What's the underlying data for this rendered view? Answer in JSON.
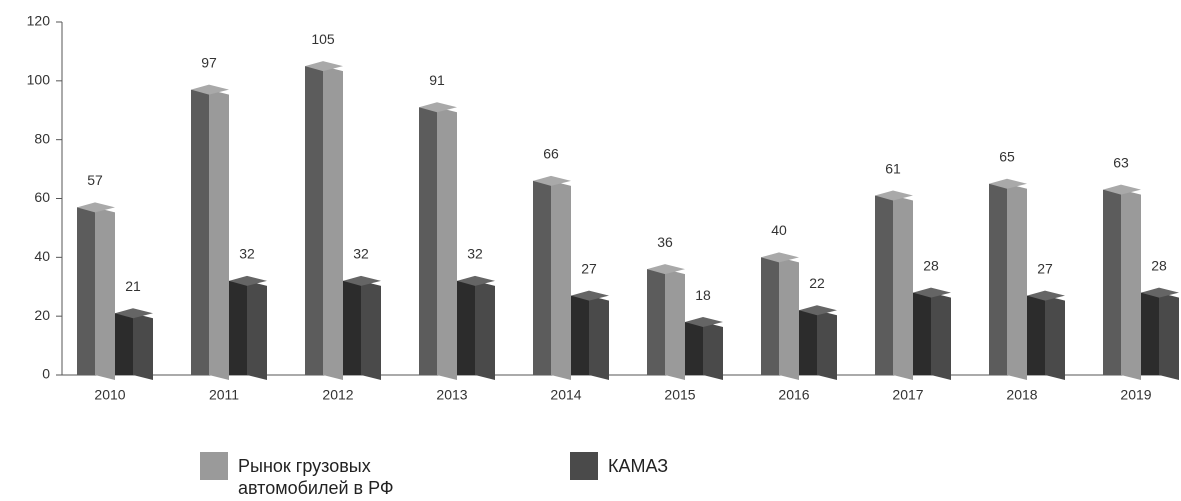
{
  "chart_data": {
    "type": "bar3d",
    "categories": [
      "2010",
      "2011",
      "2012",
      "2013",
      "2014",
      "2015",
      "2016",
      "2017",
      "2018",
      "2019"
    ],
    "series": [
      {
        "name": "Рынок грузовых автомобилей в РФ",
        "color": "#9a9a9a",
        "values": [
          57,
          97,
          105,
          91,
          66,
          36,
          40,
          61,
          65,
          63
        ]
      },
      {
        "name": "КАМАЗ",
        "color": "#4a4a4a",
        "values": [
          21,
          32,
          32,
          32,
          27,
          18,
          22,
          28,
          27,
          28
        ]
      }
    ],
    "ylim": [
      0,
      120
    ],
    "yticks": [
      0,
      20,
      40,
      60,
      80,
      100,
      120
    ],
    "legend": "bottom"
  }
}
